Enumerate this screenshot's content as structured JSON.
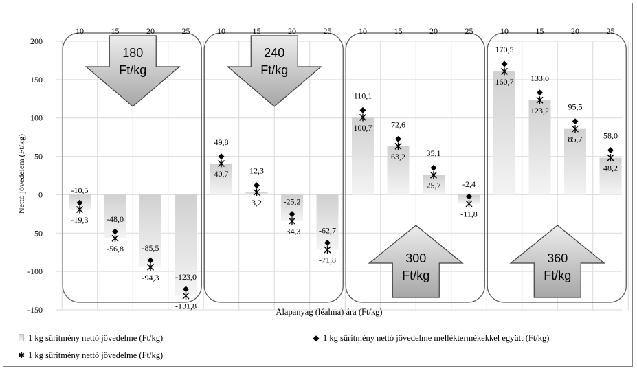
{
  "chart_data": {
    "type": "bar",
    "ylabel": "Nettó jövedelem (Ft/kg)",
    "xlabel": "Alapanyag (léalma) ára (Ft/kg)",
    "ylim": [
      -150,
      200
    ],
    "yticks": [
      200,
      150,
      100,
      50,
      0,
      -50,
      -100,
      -150
    ],
    "categories": [
      "10",
      "15",
      "20",
      "25",
      "10",
      "15",
      "20",
      "25",
      "10",
      "15",
      "20",
      "25",
      "10",
      "15",
      "20",
      "25"
    ],
    "bar_values": [
      -19.3,
      -56.8,
      -94.3,
      -131.8,
      40.7,
      3.2,
      -34.3,
      -71.8,
      100.7,
      63.2,
      25.7,
      -11.8,
      160.7,
      123.2,
      85.7,
      48.2
    ],
    "bar_labels": [
      "-19,3",
      "-56,8",
      "-94,3",
      "-131,8",
      "40,7",
      "3,2",
      "-34,3",
      "-71,8",
      "100,7",
      "63,2",
      "25,7",
      "-11,8",
      "160,7",
      "123,2",
      "85,7",
      "48,2"
    ],
    "diamond_values": [
      -10.5,
      -48.0,
      -85.5,
      -123.0,
      49.8,
      12.3,
      -25.2,
      -62.7,
      110.1,
      72.6,
      35.1,
      -2.4,
      170.5,
      133.0,
      95.5,
      58.0
    ],
    "diamond_labels": [
      "-10,5",
      "-48,0",
      "-85,5",
      "-123,0",
      "49,8",
      "12,3",
      "-25,2",
      "-62,7",
      "110,1",
      "72,6",
      "35,1",
      "-2,4",
      "170,5",
      "133,0",
      "95,5",
      "58,0"
    ],
    "groups": [
      {
        "price": "180",
        "unit": "Ft/kg",
        "arrow": "down"
      },
      {
        "price": "240",
        "unit": "Ft/kg",
        "arrow": "down"
      },
      {
        "price": "300",
        "unit": "Ft/kg",
        "arrow": "up"
      },
      {
        "price": "360",
        "unit": "Ft/kg",
        "arrow": "up"
      }
    ],
    "legend": {
      "bar": "1 kg sűrítmény nettó jövedelme (Ft/kg)",
      "diamond": "1 kg sűrítmény nettó jövedelme melléktermékekkel együtt (Ft/kg)",
      "star": "1 kg sűrítmény nettó jövedelme (Ft/kg)"
    },
    "legend_placement": "bottom",
    "grid": true,
    "colors": {
      "bar_top": "#d0d0d0",
      "bar_bottom": "#f4f4f4",
      "grid": "#d9d9d9",
      "box": "#595959",
      "arrow_top": "#e8e8e8",
      "arrow_bottom": "#a8a8a8"
    }
  }
}
